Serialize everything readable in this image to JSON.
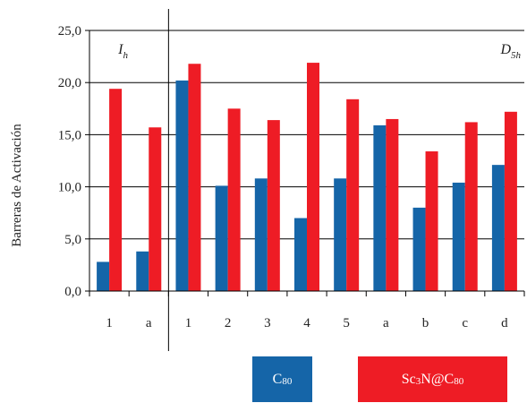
{
  "chart_data": {
    "type": "bar",
    "ylabel": "Barreras de Activación",
    "ylim": [
      0,
      25
    ],
    "yticks": [
      "0,0",
      "5,0",
      "10,0",
      "15,0",
      "20,0",
      "25,0"
    ],
    "grid": "horizontal",
    "categories": [
      "1",
      "a",
      "1",
      "2",
      "3",
      "4",
      "5",
      "a",
      "b",
      "c",
      "d"
    ],
    "groups": [
      {
        "base": "I",
        "sub": "h",
        "span": [
          0,
          1
        ]
      },
      {
        "base": "D",
        "sub": "5h",
        "span": [
          2,
          10
        ]
      }
    ],
    "series": [
      {
        "name": "C80",
        "name_base": "C",
        "name_sub": "80",
        "color": "#1565a8",
        "values": [
          2.8,
          3.8,
          20.2,
          10.1,
          10.8,
          7.0,
          10.8,
          15.9,
          8.0,
          10.4,
          12.1
        ]
      },
      {
        "name": "Sc3N@C80",
        "name_parts": [
          [
            "Sc",
            ""
          ],
          [
            "3",
            "sub"
          ],
          [
            "N@C",
            ""
          ],
          [
            "80",
            "sub"
          ]
        ],
        "color": "#ee1c25",
        "values": [
          19.4,
          15.7,
          21.8,
          17.5,
          16.4,
          21.9,
          18.4,
          16.5,
          13.4,
          16.2,
          17.2
        ]
      }
    ],
    "legend": "bottom"
  }
}
